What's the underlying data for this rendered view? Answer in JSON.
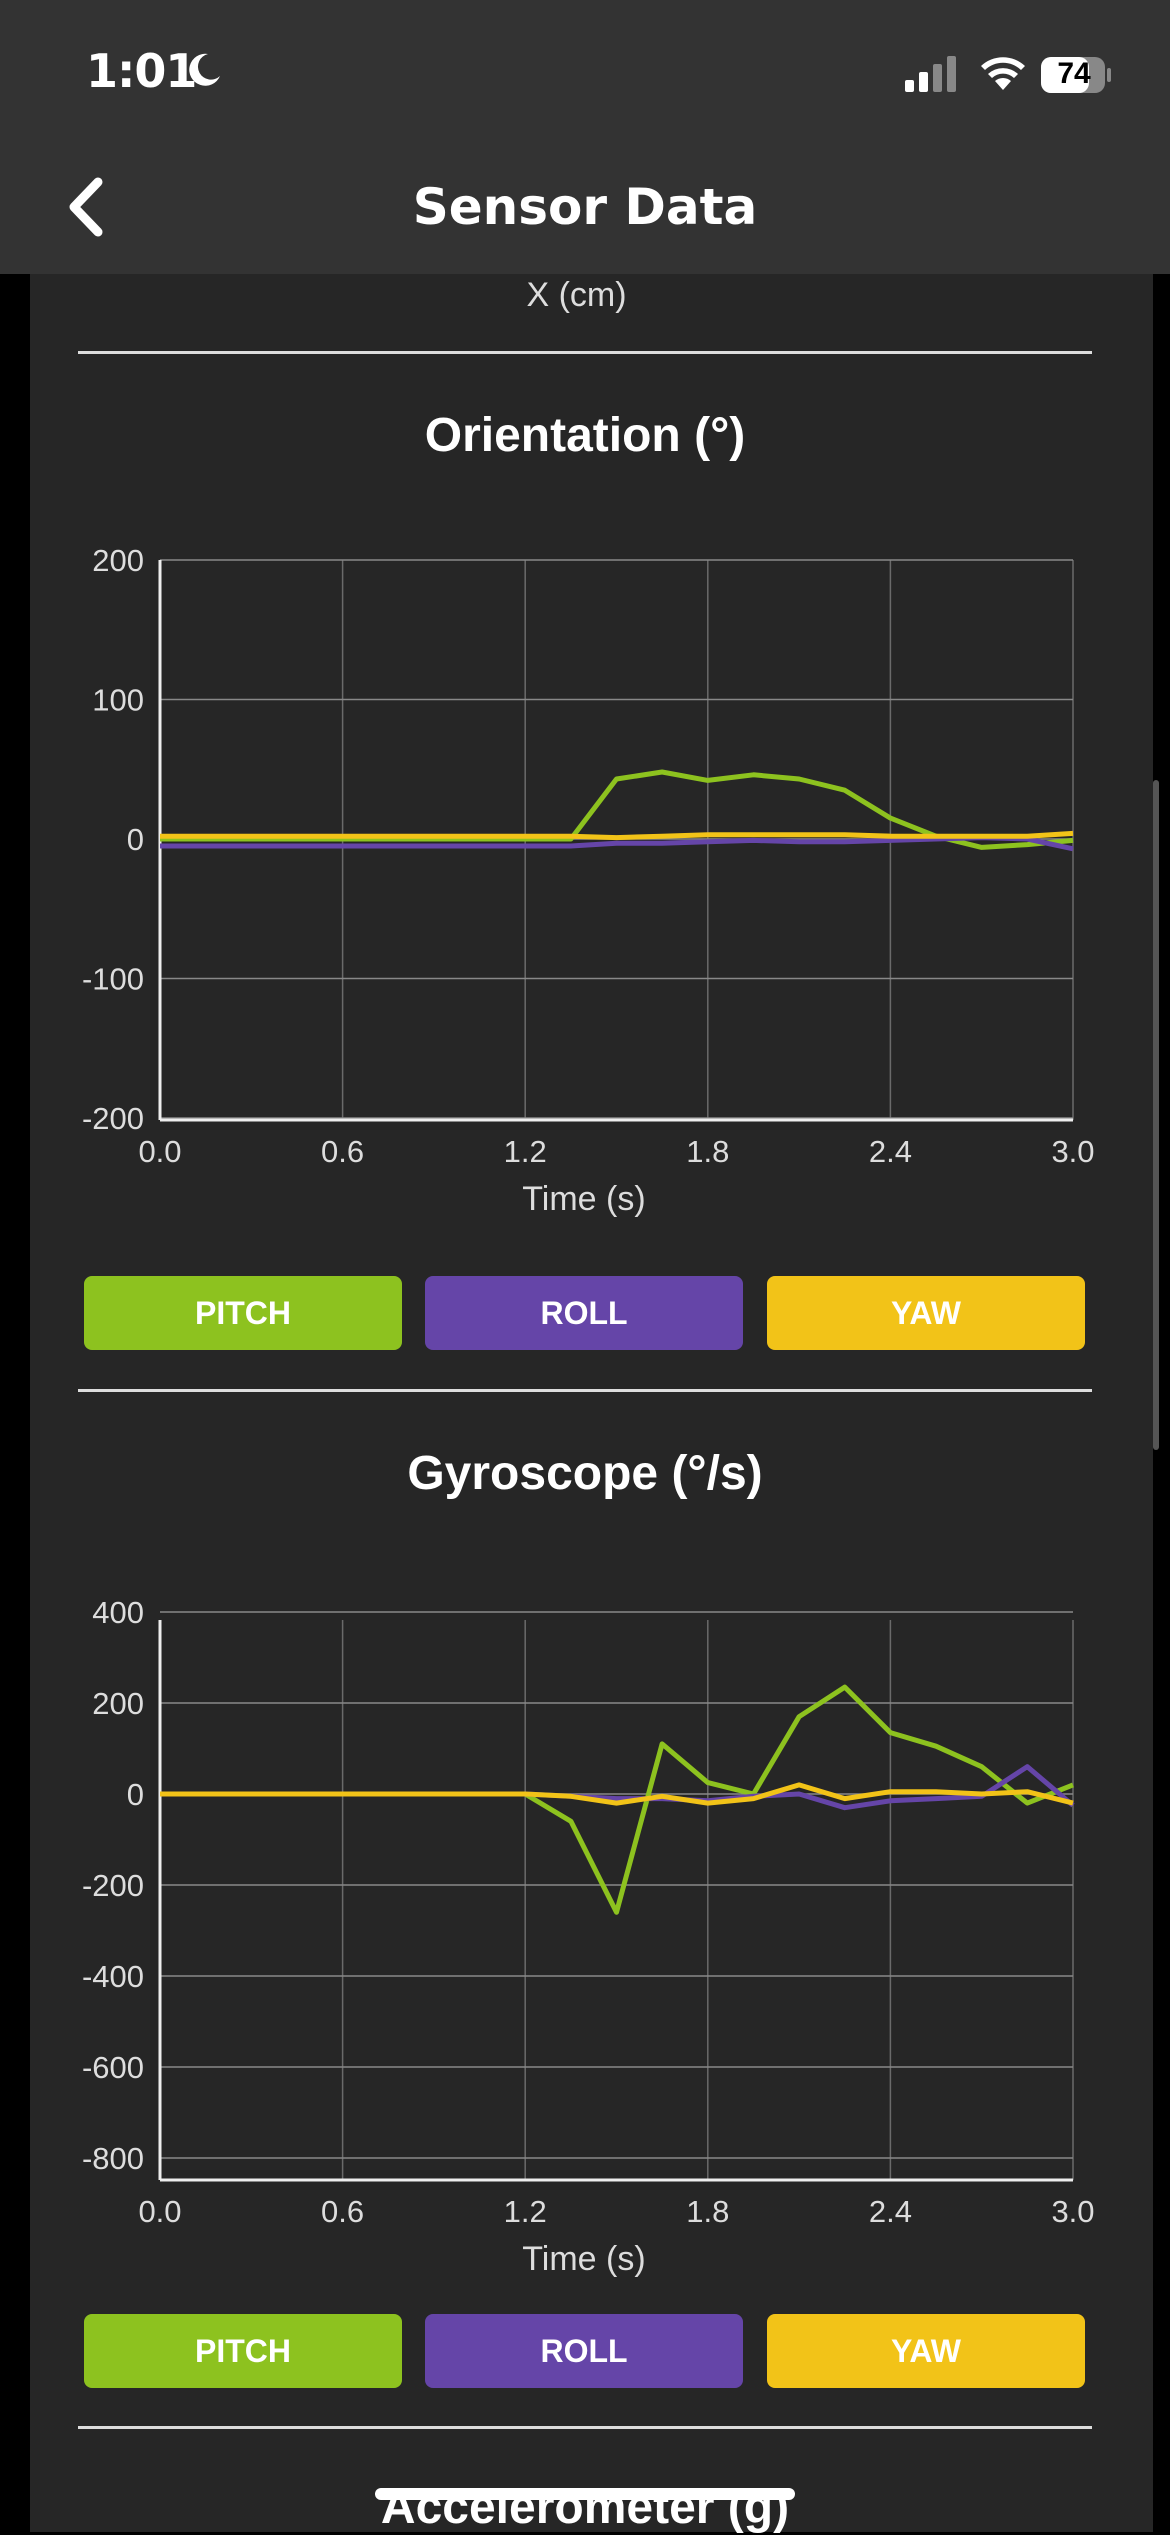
{
  "status": {
    "time": "1:01",
    "battery": "74"
  },
  "nav": {
    "title": "Sensor Data"
  },
  "prev_axis_label": "X (cm)",
  "colors": {
    "pitch": "#8dc21f",
    "roll": "#6545a8",
    "yaw": "#f2c318"
  },
  "orientation": {
    "title": "Orientation (°)",
    "buttons": [
      "PITCH",
      "ROLL",
      "YAW"
    ]
  },
  "gyroscope": {
    "title": "Gyroscope (°/s)",
    "buttons": [
      "PITCH",
      "ROLL",
      "YAW"
    ]
  },
  "accelerometer": {
    "title": "Accelerometer (g)"
  },
  "chart_data": [
    {
      "type": "line",
      "title": "Orientation (°)",
      "xlabel": "Time (s)",
      "ylabel": "",
      "xlim": [
        0,
        3.0
      ],
      "ylim": [
        -200,
        200
      ],
      "xticks": [
        "0.0",
        "0.6",
        "1.2",
        "1.8",
        "2.4",
        "3.0"
      ],
      "yticks": [
        "200",
        "100",
        "0",
        "-100",
        "-200"
      ],
      "ytick_values": [
        200,
        100,
        0,
        -100,
        -200
      ],
      "grid": true,
      "x": [
        0,
        0.15,
        0.3,
        0.45,
        0.6,
        0.75,
        0.9,
        1.05,
        1.2,
        1.35,
        1.5,
        1.65,
        1.8,
        1.95,
        2.1,
        2.25,
        2.4,
        2.55,
        2.7,
        2.85,
        3.0
      ],
      "series": [
        {
          "name": "PITCH",
          "values": [
            0,
            0,
            0,
            0,
            0,
            0,
            0,
            0,
            0,
            0,
            43,
            48,
            42,
            46,
            43,
            35,
            15,
            2,
            -6,
            -4,
            -1
          ]
        },
        {
          "name": "ROLL",
          "values": [
            -5,
            -5,
            -5,
            -5,
            -5,
            -5,
            -5,
            -5,
            -5,
            -5,
            -3,
            -3,
            -2,
            -1,
            -2,
            -2,
            -1,
            0,
            1,
            0,
            -7
          ]
        },
        {
          "name": "YAW",
          "values": [
            2,
            2,
            2,
            2,
            2,
            2,
            2,
            2,
            2,
            2,
            1,
            2,
            3,
            3,
            3,
            3,
            2,
            2,
            2,
            2,
            4
          ]
        }
      ]
    },
    {
      "type": "line",
      "title": "Gyroscope (°/s)",
      "xlabel": "Time (s)",
      "ylabel": "",
      "xlim": [
        0,
        3.0
      ],
      "ylim": [
        -800,
        400
      ],
      "xticks": [
        "0.0",
        "0.6",
        "1.2",
        "1.8",
        "2.4",
        "3.0"
      ],
      "yticks": [
        "400",
        "200",
        "0",
        "-200",
        "-400",
        "-600",
        "-800"
      ],
      "ytick_values": [
        400,
        200,
        0,
        -200,
        -400,
        -600,
        -800
      ],
      "grid": true,
      "x": [
        0,
        0.15,
        0.3,
        0.45,
        0.6,
        0.75,
        0.9,
        1.05,
        1.2,
        1.35,
        1.5,
        1.65,
        1.8,
        1.95,
        2.1,
        2.25,
        2.4,
        2.55,
        2.7,
        2.85,
        3.0
      ],
      "series": [
        {
          "name": "PITCH",
          "values": [
            0,
            0,
            0,
            0,
            0,
            0,
            0,
            0,
            0,
            -60,
            -260,
            110,
            25,
            0,
            170,
            235,
            135,
            105,
            60,
            -20,
            20
          ]
        },
        {
          "name": "ROLL",
          "values": [
            0,
            0,
            0,
            0,
            0,
            0,
            0,
            0,
            0,
            -5,
            -10,
            -10,
            -15,
            -5,
            0,
            -30,
            -15,
            -10,
            -5,
            60,
            -25
          ]
        },
        {
          "name": "YAW",
          "values": [
            0,
            0,
            0,
            0,
            0,
            0,
            0,
            0,
            0,
            -5,
            -20,
            -5,
            -20,
            -10,
            20,
            -10,
            5,
            5,
            0,
            5,
            -20
          ]
        }
      ]
    }
  ]
}
